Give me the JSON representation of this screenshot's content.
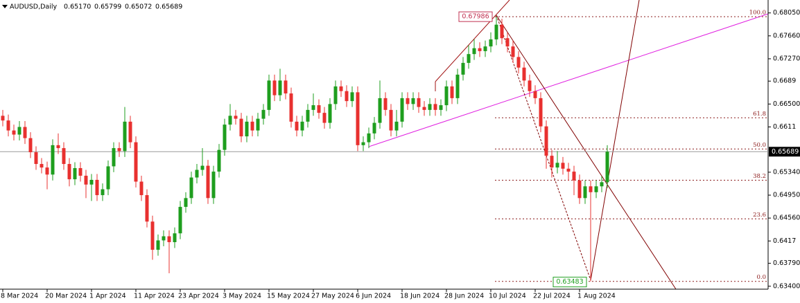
{
  "chart_data": {
    "type": "candlestick",
    "title": "AUDUSD,Daily",
    "header_values": [
      "0.65170",
      "0.65799",
      "0.65072",
      "0.65689"
    ],
    "up_color": "#1e9e1e",
    "down_color": "#e8302f",
    "categories": [
      "8 Mar 2024",
      null,
      null,
      null,
      null,
      null,
      null,
      null,
      "20 Mar 2024",
      null,
      null,
      null,
      null,
      null,
      null,
      null,
      "1 Apr 2024",
      null,
      null,
      null,
      null,
      null,
      null,
      null,
      "11 Apr 2024",
      null,
      null,
      null,
      null,
      null,
      null,
      null,
      "23 Apr 2024",
      null,
      null,
      null,
      null,
      null,
      null,
      null,
      "3 May 2024",
      null,
      null,
      null,
      null,
      null,
      null,
      null,
      "15 May 2024",
      null,
      null,
      null,
      null,
      null,
      null,
      null,
      "27 May 2024",
      null,
      null,
      null,
      null,
      null,
      null,
      null,
      "6 Jun 2024",
      null,
      null,
      null,
      null,
      null,
      null,
      null,
      "18 Jun 2024",
      null,
      null,
      null,
      null,
      null,
      null,
      null,
      "28 Jun 2024",
      null,
      null,
      null,
      null,
      null,
      null,
      null,
      "10 Jul 2024",
      null,
      null,
      null,
      null,
      null,
      null,
      null,
      "22 Jul 2024",
      null,
      null,
      null,
      null,
      null,
      null,
      null,
      "1 Aug 2024",
      null,
      null,
      null,
      null,
      null
    ],
    "open": [
      0.663,
      0.6622,
      0.6605,
      0.6598,
      0.6611,
      0.6592,
      0.6568,
      0.6548,
      0.6542,
      0.653,
      0.658,
      0.6575,
      0.6548,
      0.6522,
      0.6541,
      0.6528,
      0.6513,
      0.6521,
      0.6495,
      0.6505,
      0.6544,
      0.6575,
      0.657,
      0.662,
      0.6585,
      0.6518,
      0.6495,
      0.645,
      0.6402,
      0.6418,
      0.6425,
      0.6415,
      0.643,
      0.6475,
      0.649,
      0.6525,
      0.6538,
      0.6545,
      0.649,
      0.6535,
      0.6572,
      0.6615,
      0.663,
      0.6625,
      0.6595,
      0.662,
      0.6605,
      0.6625,
      0.664,
      0.669,
      0.6665,
      0.669,
      0.6668,
      0.662,
      0.6605,
      0.662,
      0.664,
      0.6648,
      0.6635,
      0.6618,
      0.665,
      0.668,
      0.6672,
      0.6655,
      0.667,
      0.658,
      0.6585,
      0.66,
      0.6618,
      0.666,
      0.664,
      0.6605,
      0.662,
      0.666,
      0.665,
      0.666,
      0.6645,
      0.664,
      0.665,
      0.664,
      0.6648,
      0.668,
      0.666,
      0.67,
      0.672,
      0.6735,
      0.6745,
      0.674,
      0.6748,
      0.676,
      0.6785,
      0.6762,
      0.6748,
      0.673,
      0.6712,
      0.669,
      0.6672,
      0.666,
      0.6612,
      0.6562,
      0.6542,
      0.655,
      0.654,
      0.6535,
      0.652,
      0.649,
      0.651,
      0.65,
      0.651,
      0.6517
    ],
    "high": [
      0.664,
      0.6632,
      0.6615,
      0.6621,
      0.6621,
      0.6602,
      0.6578,
      0.6558,
      0.6552,
      0.659,
      0.66,
      0.6585,
      0.6558,
      0.6551,
      0.6551,
      0.6538,
      0.6531,
      0.6531,
      0.6515,
      0.6554,
      0.6585,
      0.6585,
      0.6645,
      0.663,
      0.6595,
      0.6528,
      0.6505,
      0.646,
      0.6428,
      0.6435,
      0.6435,
      0.644,
      0.6485,
      0.65,
      0.6535,
      0.6548,
      0.6575,
      0.6555,
      0.6545,
      0.6582,
      0.6625,
      0.665,
      0.664,
      0.6635,
      0.663,
      0.663,
      0.6635,
      0.665,
      0.67,
      0.67,
      0.671,
      0.67,
      0.6678,
      0.663,
      0.663,
      0.665,
      0.6668,
      0.6658,
      0.6645,
      0.666,
      0.669,
      0.669,
      0.6682,
      0.668,
      0.668,
      0.6595,
      0.661,
      0.6628,
      0.669,
      0.667,
      0.665,
      0.664,
      0.667,
      0.667,
      0.667,
      0.667,
      0.6655,
      0.666,
      0.666,
      0.6658,
      0.669,
      0.669,
      0.671,
      0.673,
      0.675,
      0.676,
      0.6755,
      0.6758,
      0.6772,
      0.67986,
      0.6795,
      0.6772,
      0.6758,
      0.674,
      0.6722,
      0.67,
      0.6682,
      0.667,
      0.6622,
      0.6572,
      0.657,
      0.656,
      0.655,
      0.6545,
      0.653,
      0.652,
      0.652,
      0.652,
      0.6527,
      0.65799
    ],
    "low": [
      0.6612,
      0.6595,
      0.6588,
      0.6588,
      0.6582,
      0.6558,
      0.6538,
      0.6532,
      0.6505,
      0.652,
      0.6565,
      0.6538,
      0.651,
      0.6512,
      0.6518,
      0.649,
      0.6485,
      0.6485,
      0.6485,
      0.6495,
      0.6534,
      0.656,
      0.656,
      0.6575,
      0.6508,
      0.6485,
      0.644,
      0.6385,
      0.6392,
      0.6408,
      0.6362,
      0.6405,
      0.642,
      0.6465,
      0.648,
      0.6515,
      0.6528,
      0.648,
      0.648,
      0.6525,
      0.6562,
      0.6605,
      0.6615,
      0.6585,
      0.6585,
      0.6595,
      0.6595,
      0.6615,
      0.663,
      0.6655,
      0.6655,
      0.6658,
      0.661,
      0.6595,
      0.6595,
      0.661,
      0.663,
      0.6625,
      0.6608,
      0.6608,
      0.664,
      0.6662,
      0.6645,
      0.6645,
      0.657,
      0.657,
      0.6575,
      0.659,
      0.6608,
      0.663,
      0.6595,
      0.6595,
      0.661,
      0.664,
      0.664,
      0.6635,
      0.663,
      0.663,
      0.663,
      0.663,
      0.6638,
      0.665,
      0.665,
      0.669,
      0.671,
      0.6725,
      0.673,
      0.673,
      0.6738,
      0.675,
      0.6752,
      0.6738,
      0.672,
      0.6702,
      0.668,
      0.6662,
      0.665,
      0.6602,
      0.654,
      0.6525,
      0.6532,
      0.653,
      0.652,
      0.6495,
      0.648,
      0.648,
      0.63483,
      0.649,
      0.65,
      0.65072
    ],
    "close": [
      0.6622,
      0.6605,
      0.6598,
      0.6611,
      0.6592,
      0.6568,
      0.6548,
      0.6542,
      0.653,
      0.658,
      0.6575,
      0.6548,
      0.6522,
      0.6541,
      0.6528,
      0.6513,
      0.6521,
      0.6495,
      0.6505,
      0.6544,
      0.6575,
      0.657,
      0.662,
      0.6585,
      0.6518,
      0.6495,
      0.645,
      0.6402,
      0.6418,
      0.6425,
      0.6415,
      0.643,
      0.6475,
      0.649,
      0.6525,
      0.6538,
      0.6545,
      0.649,
      0.6535,
      0.6572,
      0.6615,
      0.663,
      0.6625,
      0.6595,
      0.662,
      0.6605,
      0.6625,
      0.664,
      0.669,
      0.6665,
      0.669,
      0.6668,
      0.662,
      0.6605,
      0.662,
      0.664,
      0.6648,
      0.6635,
      0.6618,
      0.665,
      0.668,
      0.6672,
      0.6655,
      0.667,
      0.658,
      0.6585,
      0.66,
      0.6618,
      0.666,
      0.664,
      0.6605,
      0.662,
      0.666,
      0.665,
      0.666,
      0.6645,
      0.664,
      0.665,
      0.664,
      0.6648,
      0.668,
      0.666,
      0.67,
      0.672,
      0.6735,
      0.6745,
      0.674,
      0.6748,
      0.676,
      0.6785,
      0.6762,
      0.6748,
      0.673,
      0.6712,
      0.669,
      0.6672,
      0.666,
      0.6612,
      0.6562,
      0.6542,
      0.655,
      0.654,
      0.6535,
      0.652,
      0.649,
      0.651,
      0.65,
      0.651,
      0.6517,
      0.65689
    ],
    "ylim": [
      0.6335,
      0.6827
    ],
    "yticks": [
      {
        "value": 0.6805,
        "label": "0.68050"
      },
      {
        "value": 0.6766,
        "label": "0.67660"
      },
      {
        "value": 0.6727,
        "label": "0.67270"
      },
      0.6689,
      {
        "value": 0.665,
        "label": "0.66500"
      },
      0.6611,
      {
        "value": 0.6534,
        "label": "0.65340"
      },
      {
        "value": 0.6495,
        "label": "0.64950"
      },
      {
        "value": 0.6456,
        "label": "0.64560"
      },
      0.6417,
      {
        "value": 0.6379,
        "label": "0.63790"
      },
      {
        "value": 0.634,
        "label": "0.63400"
      }
    ],
    "current_price": 0.65689,
    "fib": {
      "high": 0.67986,
      "low": 0.63483,
      "levels": [
        {
          "value": 100,
          "label": "100.0"
        },
        61.8,
        {
          "value": 50,
          "label": "50.0"
        },
        38.2,
        23.6,
        {
          "value": 0,
          "label": "0.0"
        }
      ]
    }
  }
}
